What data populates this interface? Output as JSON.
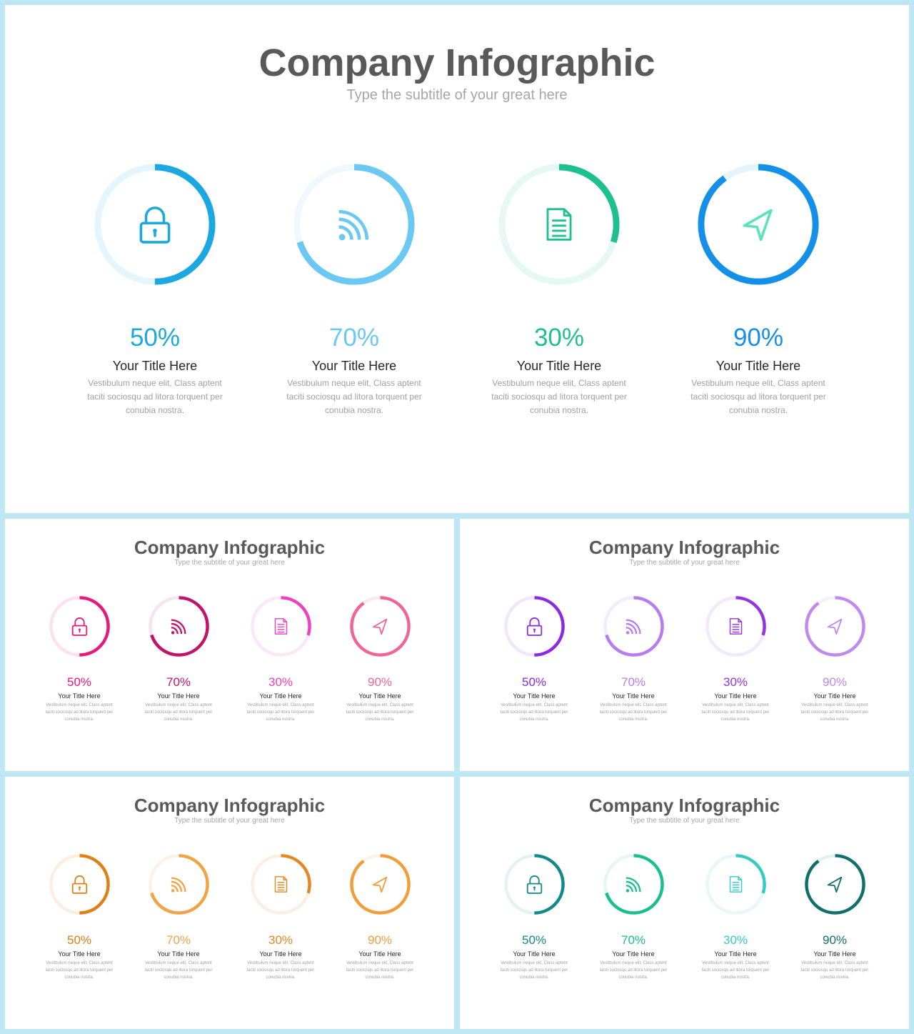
{
  "slides": [
    {
      "title": "Company Infographic",
      "subtitle": "Type the subtitle of your great here",
      "items": [
        {
          "percent_label": "50%",
          "value": 50,
          "title": "Your Title Here",
          "description": "Vestibulum neque  elit, Class aptent taciti sociosqu ad litora torquent per conubia nostra.",
          "icon": "lock-icon",
          "color": "#1ba8e0",
          "track": "#e4f5fc"
        },
        {
          "percent_label": "70%",
          "value": 70,
          "title": "Your Title Here",
          "description": "Vestibulum neque  elit, Class aptent taciti sociosqu ad litora torquent per conubia nostra.",
          "icon": "rss-icon",
          "color": "#6ac8f3",
          "track": "#eef8fd"
        },
        {
          "percent_label": "30%",
          "value": 30,
          "title": "Your Title Here",
          "description": "Vestibulum neque  elit, Class aptent taciti sociosqu ad litora torquent per conubia nostra.",
          "icon": "document-icon",
          "color": "#1ec08f",
          "track": "#e5f8f3"
        },
        {
          "percent_label": "90%",
          "value": 90,
          "title": "Your Title Here",
          "description": "Vestibulum neque  elit, Class aptent taciti sociosqu ad litora torquent per conubia nostra.",
          "icon": "navigation-icon",
          "color": "#1590e8",
          "track": "#e4f4fd",
          "icon_color": "#59e3b8"
        }
      ]
    },
    {
      "title": "Company Infographic",
      "subtitle": "Type the subtitle of your great here",
      "items": [
        {
          "percent_label": "50%",
          "value": 50,
          "title": "Your Title Here",
          "description": "Vestibulum neque  elit, Class aptent taciti sociosqu ad litora torquent per conubia nostra.",
          "icon": "lock-icon",
          "color": "#e8197a",
          "track": "#fde2ee"
        },
        {
          "percent_label": "70%",
          "value": 70,
          "title": "Your Title Here",
          "description": "Vestibulum neque  elit, Class aptent taciti sociosqu ad litora torquent per conubia nostra.",
          "icon": "rss-icon",
          "color": "#c21368",
          "track": "#f8e4ee"
        },
        {
          "percent_label": "30%",
          "value": 30,
          "title": "Your Title Here",
          "description": "Vestibulum neque  elit, Class aptent taciti sociosqu ad litora torquent per conubia nostra.",
          "icon": "document-icon",
          "color": "#f03fbf",
          "track": "#fde6f7"
        },
        {
          "percent_label": "90%",
          "value": 90,
          "title": "Your Title Here",
          "description": "Vestibulum neque  elit, Class aptent taciti sociosqu ad litora torquent per conubia nostra.",
          "icon": "navigation-icon",
          "color": "#f06595",
          "track": "#fde8ef"
        }
      ]
    },
    {
      "title": "Company Infographic",
      "subtitle": "Type the subtitle of your great here",
      "items": [
        {
          "percent_label": "50%",
          "value": 50,
          "title": "Your Title Here",
          "description": "Vestibulum neque  elit, Class aptent taciti sociosqu ad litora torquent per conubia nostra.",
          "icon": "lock-icon",
          "color": "#8a2be2",
          "track": "#f1e6fb"
        },
        {
          "percent_label": "70%",
          "value": 70,
          "title": "Your Title Here",
          "description": "Vestibulum neque  elit, Class aptent taciti sociosqu ad litora torquent per conubia nostra.",
          "icon": "rss-icon",
          "color": "#b67cf0",
          "track": "#f4ecfc"
        },
        {
          "percent_label": "30%",
          "value": 30,
          "title": "Your Title Here",
          "description": "Vestibulum neque  elit, Class aptent taciti sociosqu ad litora torquent per conubia nostra.",
          "icon": "document-icon",
          "color": "#9333e6",
          "track": "#f3e8fc"
        },
        {
          "percent_label": "90%",
          "value": 90,
          "title": "Your Title Here",
          "description": "Vestibulum neque  elit, Class aptent taciti sociosqu ad litora torquent per conubia nostra.",
          "icon": "navigation-icon",
          "color": "#bf8af0",
          "track": "#f6effd"
        }
      ]
    },
    {
      "title": "Company Infographic",
      "subtitle": "Type the subtitle of your great here",
      "items": [
        {
          "percent_label": "50%",
          "value": 50,
          "title": "Your Title Here",
          "description": "Vestibulum neque  elit, Class aptent taciti sociosqu ad litora torquent per conubia nostra.",
          "icon": "lock-icon",
          "color": "#e07f16",
          "track": "#fcefe0"
        },
        {
          "percent_label": "70%",
          "value": 70,
          "title": "Your Title Here",
          "description": "Vestibulum neque  elit, Class aptent taciti sociosqu ad litora torquent per conubia nostra.",
          "icon": "rss-icon",
          "color": "#f4a246",
          "track": "#fdf1e3"
        },
        {
          "percent_label": "30%",
          "value": 30,
          "title": "Your Title Here",
          "description": "Vestibulum neque  elit, Class aptent taciti sociosqu ad litora torquent per conubia nostra.",
          "icon": "document-icon",
          "color": "#e58722",
          "track": "#fcefe2"
        },
        {
          "percent_label": "90%",
          "value": 90,
          "title": "Your Title Here",
          "description": "Vestibulum neque  elit, Class aptent taciti sociosqu ad litora torquent per conubia nostra.",
          "icon": "navigation-icon",
          "color": "#f39c3a",
          "track": "#fdf2e6"
        }
      ]
    },
    {
      "title": "Company Infographic",
      "subtitle": "Type the subtitle of your great here",
      "items": [
        {
          "percent_label": "50%",
          "value": 50,
          "title": "Your Title Here",
          "description": "Vestibulum neque  elit, Class aptent taciti sociosqu ad litora torquent per conubia nostra.",
          "icon": "lock-icon",
          "color": "#12898a",
          "track": "#e3f3f3"
        },
        {
          "percent_label": "70%",
          "value": 70,
          "title": "Your Title Here",
          "description": "Vestibulum neque  elit, Class aptent taciti sociosqu ad litora torquent per conubia nostra.",
          "icon": "rss-icon",
          "color": "#19c08c",
          "track": "#e4f8f1"
        },
        {
          "percent_label": "30%",
          "value": 30,
          "title": "Your Title Here",
          "description": "Vestibulum neque  elit, Class aptent taciti sociosqu ad litora torquent per conubia nostra.",
          "icon": "document-icon",
          "color": "#35cbc5",
          "track": "#e6f8f7"
        },
        {
          "percent_label": "90%",
          "value": 90,
          "title": "Your Title Here",
          "description": "Vestibulum neque  elit, Class aptent taciti sociosqu ad litora torquent per conubia nostra.",
          "icon": "navigation-icon",
          "color": "#0e6f6b",
          "track": "#e2f1f0"
        }
      ]
    }
  ]
}
